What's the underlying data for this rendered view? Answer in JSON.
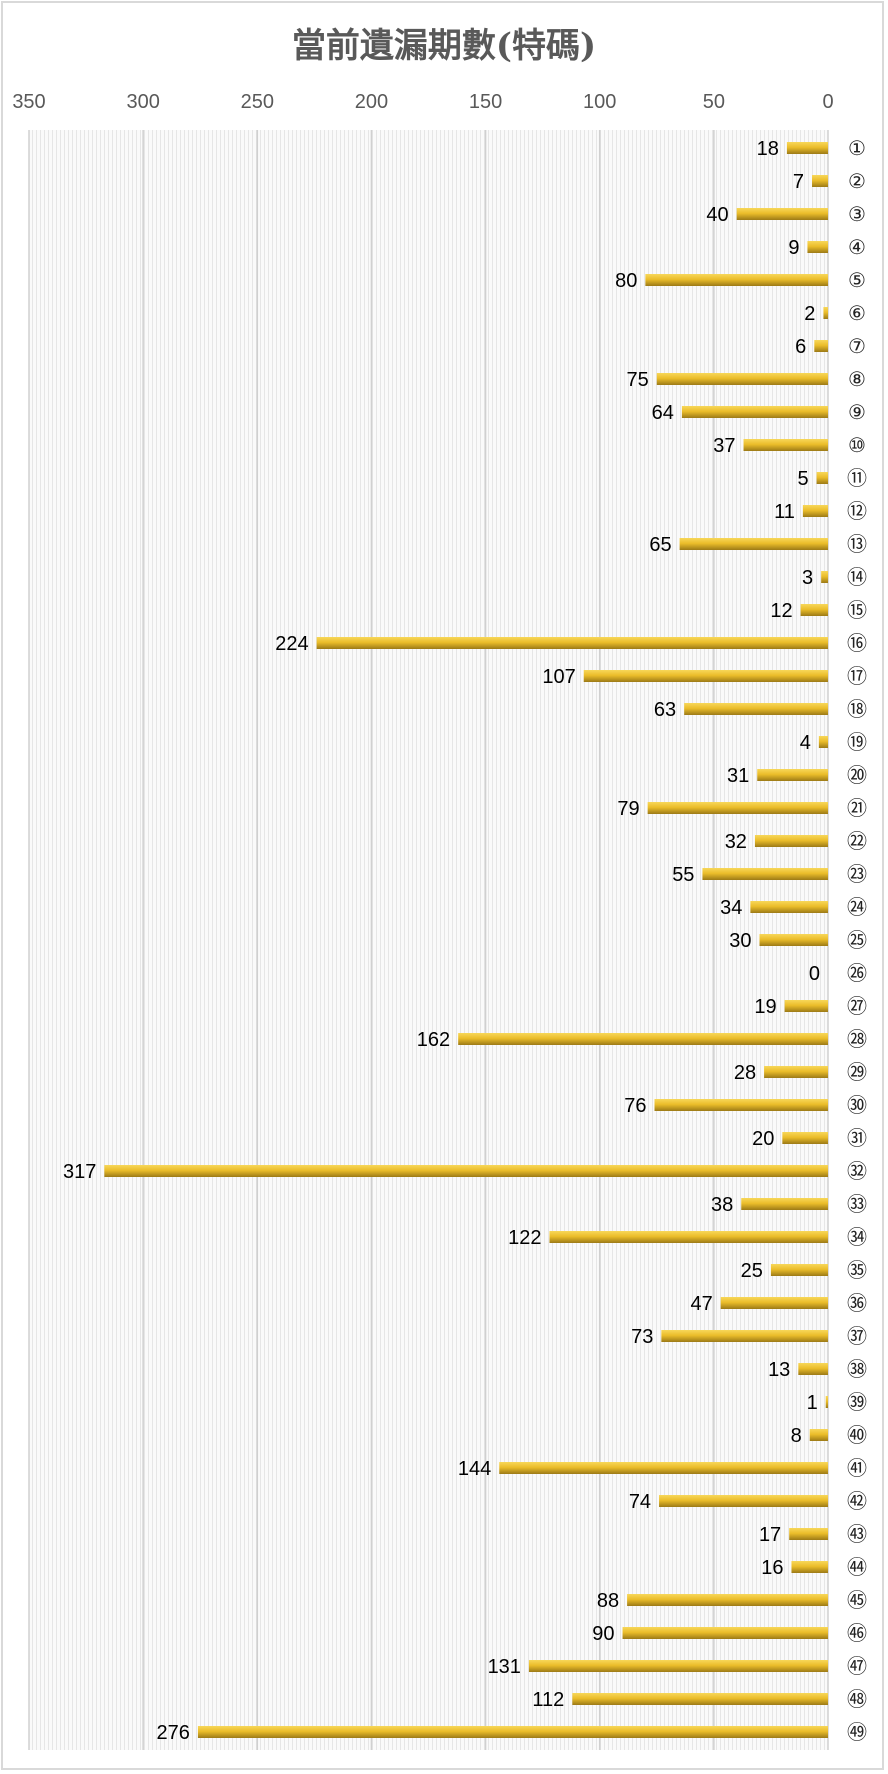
{
  "chart_data": {
    "type": "bar",
    "orientation": "horizontal",
    "x_axis_reversed": true,
    "title": "當前遺漏期數(特碼)",
    "xlim": [
      0,
      350
    ],
    "xticks": [
      350,
      300,
      250,
      200,
      150,
      100,
      50,
      0
    ],
    "grid": true,
    "bar_color": "#e8b923",
    "categories": [
      "①",
      "②",
      "③",
      "④",
      "⑤",
      "⑥",
      "⑦",
      "⑧",
      "⑨",
      "⑩",
      "⑪",
      "⑫",
      "⑬",
      "⑭",
      "⑮",
      "⑯",
      "⑰",
      "⑱",
      "⑲",
      "⑳",
      "㉑",
      "㉒",
      "㉓",
      "㉔",
      "㉕",
      "㉖",
      "㉗",
      "㉘",
      "㉙",
      "㉚",
      "㉛",
      "㉜",
      "㉝",
      "㉞",
      "㉟",
      "㊱",
      "㊲",
      "㊳",
      "㊴",
      "㊵",
      "㊶",
      "㊷",
      "㊸",
      "㊹",
      "㊺",
      "㊻",
      "㊼",
      "㊽",
      "㊾"
    ],
    "values": [
      18,
      7,
      40,
      9,
      80,
      2,
      6,
      75,
      64,
      37,
      5,
      11,
      65,
      3,
      12,
      224,
      107,
      63,
      4,
      31,
      79,
      32,
      55,
      34,
      30,
      0,
      19,
      162,
      28,
      76,
      20,
      317,
      38,
      122,
      25,
      47,
      73,
      13,
      1,
      8,
      144,
      74,
      17,
      16,
      88,
      90,
      131,
      112,
      276
    ]
  }
}
